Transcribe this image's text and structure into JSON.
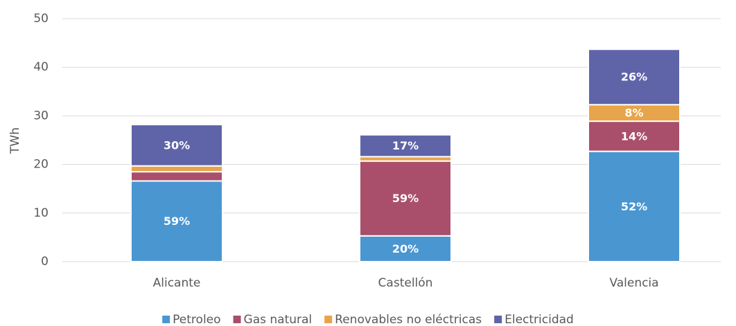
{
  "chart_data": {
    "type": "stacked_bar",
    "y_label": "TWh",
    "categories": [
      "Alicante",
      "Castellón",
      "Valencia"
    ],
    "series": [
      {
        "name": "Petroleo",
        "color": "#4a96d1",
        "values": [
          16.6,
          5.3,
          22.7
        ],
        "value_labels": [
          "59%",
          "20%",
          "52%"
        ]
      },
      {
        "name": "Gas natural",
        "color": "#a94f6b",
        "values": [
          1.9,
          15.4,
          6.2
        ],
        "value_labels": [
          null,
          "59%",
          "14%"
        ]
      },
      {
        "name": "Renovables no eléctricas",
        "color": "#e8a44a",
        "values": [
          1.2,
          0.9,
          3.4
        ],
        "value_labels": [
          null,
          null,
          "8%"
        ]
      },
      {
        "name": "Electricidad",
        "color": "#5f64a8",
        "values": [
          8.5,
          4.5,
          11.4
        ],
        "value_labels": [
          "30%",
          "17%",
          "26%"
        ]
      }
    ],
    "ylim": [
      0,
      50
    ],
    "yticks": [
      0,
      10,
      20,
      30,
      40,
      50
    ],
    "grid": true,
    "legend": "bottom"
  }
}
